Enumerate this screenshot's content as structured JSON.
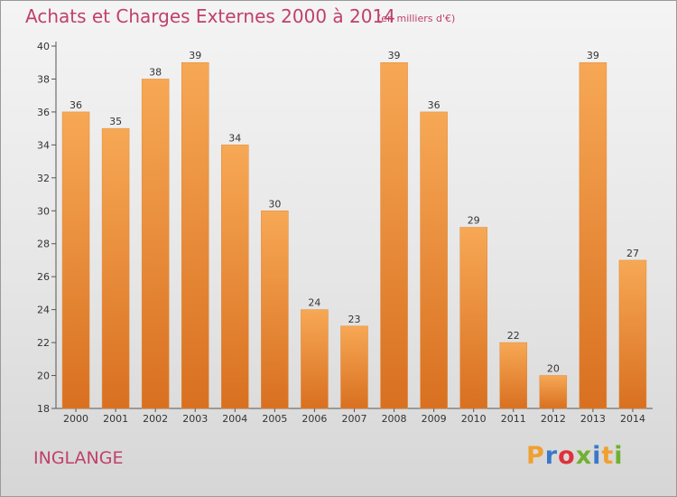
{
  "title": "Achats et Charges Externes 2000 à 2014",
  "unit_note": "(en milliers d'€)",
  "commune": "INGLANGE",
  "logo": {
    "letters": [
      "P",
      "r",
      "o",
      "x",
      "i",
      "t",
      "i"
    ],
    "colors": [
      "#f0a030",
      "#3a78c8",
      "#e0303a",
      "#70b030",
      "#3a78c8",
      "#f0a030",
      "#70b030"
    ]
  },
  "colors": {
    "bar_top": "#f7a855",
    "bar_bottom": "#d87020",
    "accent_text": "#c0406a"
  },
  "chart_data": {
    "type": "bar",
    "title": "Achats et Charges Externes 2000 à 2014",
    "categories": [
      "2000",
      "2001",
      "2002",
      "2003",
      "2004",
      "2005",
      "2006",
      "2007",
      "2008",
      "2009",
      "2010",
      "2011",
      "2012",
      "2013",
      "2014"
    ],
    "values": [
      36,
      35,
      38,
      39,
      34,
      30,
      24,
      23,
      39,
      36,
      29,
      22,
      20,
      39,
      27
    ],
    "xlabel": "",
    "ylabel": "",
    "ylim": [
      18,
      40
    ],
    "yticks": [
      18,
      20,
      22,
      24,
      26,
      28,
      30,
      32,
      34,
      36,
      38,
      40
    ],
    "grid": false,
    "legend": "none"
  }
}
